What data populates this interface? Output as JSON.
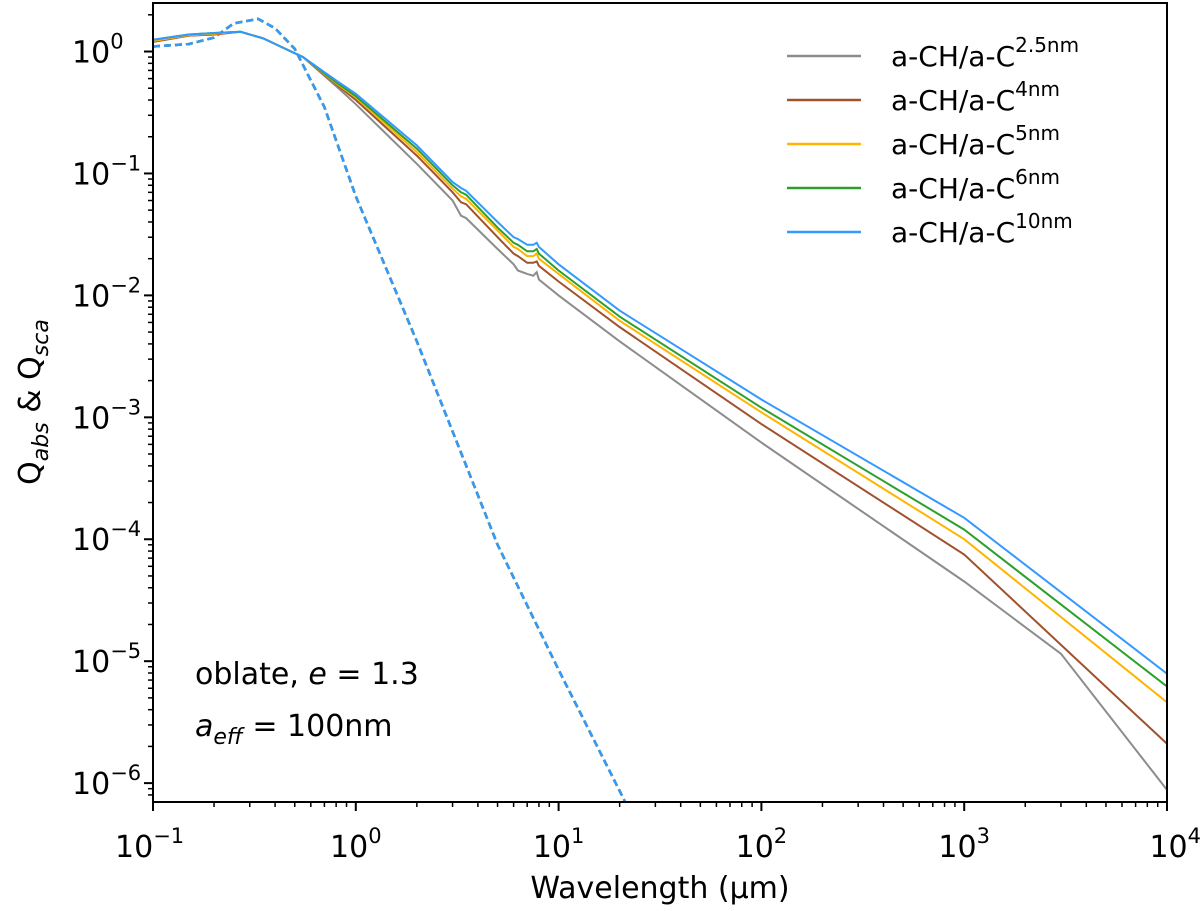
{
  "chart_data": {
    "type": "line",
    "xscale": "log",
    "yscale": "log",
    "xlabel": "Wavelength (μm)",
    "ylabel": "Q_abs & Q_sca",
    "ylabel_parts": {
      "q1": "Q",
      "sub1": "abs",
      "amp": " & ",
      "q2": "Q",
      "sub2": "sca"
    },
    "xlim": [
      0.1,
      10000
    ],
    "ylim": [
      7e-07,
      2.5
    ],
    "x_ticks": [
      {
        "value": 0.1,
        "base": "10",
        "exp": "−1"
      },
      {
        "value": 1,
        "base": "10",
        "exp": "0"
      },
      {
        "value": 10,
        "base": "10",
        "exp": "1"
      },
      {
        "value": 100,
        "base": "10",
        "exp": "2"
      },
      {
        "value": 1000,
        "base": "10",
        "exp": "3"
      },
      {
        "value": 10000,
        "base": "10",
        "exp": "4"
      }
    ],
    "y_ticks": [
      {
        "value": 1,
        "base": "10",
        "exp": "0"
      },
      {
        "value": 0.1,
        "base": "10",
        "exp": "−1"
      },
      {
        "value": 0.01,
        "base": "10",
        "exp": "−2"
      },
      {
        "value": 0.001,
        "base": "10",
        "exp": "−3"
      },
      {
        "value": 0.0001,
        "base": "10",
        "exp": "−4"
      },
      {
        "value": 1e-05,
        "base": "10",
        "exp": "−5"
      },
      {
        "value": 1e-06,
        "base": "10",
        "exp": "−6"
      }
    ],
    "annotation": {
      "line1_prefix": "oblate, ",
      "line1_var": "e",
      "line1_suffix": " = 1.3",
      "line2_var": "a",
      "line2_sub": "eff",
      "line2_suffix": " = 100nm"
    },
    "series": [
      {
        "name": "a-CH/a-C",
        "name_sup": "2.5nm",
        "color": "#8c8c8c",
        "absorption": [
          [
            0.1,
            1.2
          ],
          [
            0.15,
            1.35
          ],
          [
            0.2,
            1.38
          ],
          [
            0.27,
            1.45
          ],
          [
            0.35,
            1.28
          ],
          [
            0.45,
            1.05
          ],
          [
            0.55,
            0.9
          ],
          [
            0.8,
            0.52
          ],
          [
            1.0,
            0.37
          ],
          [
            2.0,
            0.12
          ],
          [
            3.0,
            0.06
          ],
          [
            3.3,
            0.045
          ],
          [
            3.5,
            0.043
          ],
          [
            5.0,
            0.024
          ],
          [
            6.0,
            0.018
          ],
          [
            6.3,
            0.016
          ],
          [
            7.0,
            0.015
          ],
          [
            7.5,
            0.0145
          ],
          [
            7.8,
            0.0155
          ],
          [
            8.0,
            0.0135
          ],
          [
            10,
            0.01
          ],
          [
            20,
            0.0042
          ],
          [
            100,
            0.00062
          ],
          [
            1000,
            4.5e-05
          ],
          [
            3000,
            1.15e-05
          ],
          [
            10000,
            8.8e-07
          ]
        ],
        "scattering": [
          [
            0.1,
            1.1
          ],
          [
            0.15,
            1.15
          ],
          [
            0.2,
            1.3
          ],
          [
            0.25,
            1.7
          ],
          [
            0.33,
            1.85
          ],
          [
            0.4,
            1.55
          ],
          [
            0.5,
            1.05
          ],
          [
            0.7,
            0.35
          ],
          [
            1.0,
            0.065
          ],
          [
            2,
            0.0042
          ],
          [
            5,
            9e-05
          ],
          [
            10,
            8.5e-06
          ],
          [
            21.3,
            7e-07
          ]
        ]
      },
      {
        "name": "a-CH/a-C",
        "name_sup": "4nm",
        "color": "#a0522d",
        "absorption": [
          [
            0.1,
            1.2
          ],
          [
            0.15,
            1.35
          ],
          [
            0.2,
            1.38
          ],
          [
            0.27,
            1.45
          ],
          [
            0.35,
            1.28
          ],
          [
            0.45,
            1.05
          ],
          [
            0.55,
            0.9
          ],
          [
            0.8,
            0.54
          ],
          [
            1.0,
            0.4
          ],
          [
            2.0,
            0.14
          ],
          [
            3.0,
            0.07
          ],
          [
            3.3,
            0.058
          ],
          [
            3.5,
            0.056
          ],
          [
            5.0,
            0.03
          ],
          [
            6.0,
            0.022
          ],
          [
            6.3,
            0.021
          ],
          [
            7.0,
            0.0185
          ],
          [
            7.5,
            0.0185
          ],
          [
            7.8,
            0.019
          ],
          [
            8.0,
            0.0175
          ],
          [
            10,
            0.013
          ],
          [
            20,
            0.0055
          ],
          [
            100,
            0.00088
          ],
          [
            1000,
            7.5e-05
          ],
          [
            10000,
            2.1e-06
          ]
        ],
        "scattering": [
          [
            0.1,
            1.1
          ],
          [
            0.15,
            1.15
          ],
          [
            0.2,
            1.3
          ],
          [
            0.25,
            1.7
          ],
          [
            0.33,
            1.85
          ],
          [
            0.4,
            1.55
          ],
          [
            0.5,
            1.05
          ],
          [
            0.7,
            0.35
          ],
          [
            1.0,
            0.065
          ],
          [
            2,
            0.0042
          ],
          [
            5,
            9e-05
          ],
          [
            10,
            8.5e-06
          ],
          [
            21.3,
            7e-07
          ]
        ]
      },
      {
        "name": "a-CH/a-C",
        "name_sup": "5nm",
        "color": "#ffb400",
        "absorption": [
          [
            0.1,
            1.22
          ],
          [
            0.15,
            1.36
          ],
          [
            0.2,
            1.4
          ],
          [
            0.27,
            1.45
          ],
          [
            0.35,
            1.28
          ],
          [
            0.45,
            1.05
          ],
          [
            0.55,
            0.9
          ],
          [
            0.8,
            0.55
          ],
          [
            1.0,
            0.42
          ],
          [
            2.0,
            0.15
          ],
          [
            3.0,
            0.075
          ],
          [
            3.3,
            0.065
          ],
          [
            3.5,
            0.062
          ],
          [
            5.0,
            0.034
          ],
          [
            6.0,
            0.025
          ],
          [
            6.3,
            0.024
          ],
          [
            7.0,
            0.021
          ],
          [
            7.5,
            0.021
          ],
          [
            7.8,
            0.022
          ],
          [
            8.0,
            0.02
          ],
          [
            10,
            0.015
          ],
          [
            20,
            0.0062
          ],
          [
            100,
            0.0011
          ],
          [
            1000,
            0.0001
          ],
          [
            10000,
            4.6e-06
          ]
        ],
        "scattering": [
          [
            0.1,
            1.1
          ],
          [
            0.15,
            1.15
          ],
          [
            0.2,
            1.3
          ],
          [
            0.25,
            1.7
          ],
          [
            0.33,
            1.85
          ],
          [
            0.4,
            1.55
          ],
          [
            0.5,
            1.05
          ],
          [
            0.7,
            0.35
          ],
          [
            1.0,
            0.065
          ],
          [
            2,
            0.0042
          ],
          [
            5,
            9e-05
          ],
          [
            10,
            8.5e-06
          ],
          [
            21.3,
            7e-07
          ]
        ]
      },
      {
        "name": "a-CH/a-C",
        "name_sup": "6nm",
        "color": "#2ca02c",
        "absorption": [
          [
            0.1,
            1.25
          ],
          [
            0.15,
            1.38
          ],
          [
            0.2,
            1.42
          ],
          [
            0.27,
            1.45
          ],
          [
            0.35,
            1.28
          ],
          [
            0.45,
            1.05
          ],
          [
            0.55,
            0.9
          ],
          [
            0.8,
            0.56
          ],
          [
            1.0,
            0.43
          ],
          [
            2.0,
            0.16
          ],
          [
            3.0,
            0.08
          ],
          [
            3.3,
            0.07
          ],
          [
            3.5,
            0.067
          ],
          [
            5.0,
            0.036
          ],
          [
            6.0,
            0.027
          ],
          [
            6.3,
            0.026
          ],
          [
            7.0,
            0.023
          ],
          [
            7.5,
            0.023
          ],
          [
            7.8,
            0.024
          ],
          [
            8.0,
            0.022
          ],
          [
            10,
            0.016
          ],
          [
            20,
            0.0067
          ],
          [
            100,
            0.0012
          ],
          [
            1000,
            0.00012
          ],
          [
            10000,
            6.2e-06
          ]
        ],
        "scattering": [
          [
            0.1,
            1.1
          ],
          [
            0.15,
            1.15
          ],
          [
            0.2,
            1.3
          ],
          [
            0.25,
            1.7
          ],
          [
            0.33,
            1.85
          ],
          [
            0.4,
            1.55
          ],
          [
            0.5,
            1.05
          ],
          [
            0.7,
            0.35
          ],
          [
            1.0,
            0.065
          ],
          [
            2,
            0.0042
          ],
          [
            5,
            9e-05
          ],
          [
            10,
            8.5e-06
          ],
          [
            21.3,
            7e-07
          ]
        ]
      },
      {
        "name": "a-CH/a-C",
        "name_sup": "10nm",
        "color": "#3399ff",
        "absorption": [
          [
            0.1,
            1.25
          ],
          [
            0.15,
            1.38
          ],
          [
            0.2,
            1.42
          ],
          [
            0.27,
            1.45
          ],
          [
            0.35,
            1.28
          ],
          [
            0.45,
            1.05
          ],
          [
            0.55,
            0.9
          ],
          [
            0.8,
            0.58
          ],
          [
            1.0,
            0.45
          ],
          [
            2.0,
            0.17
          ],
          [
            3.0,
            0.085
          ],
          [
            3.3,
            0.076
          ],
          [
            3.5,
            0.072
          ],
          [
            5.0,
            0.04
          ],
          [
            6.0,
            0.03
          ],
          [
            6.3,
            0.029
          ],
          [
            7.0,
            0.026
          ],
          [
            7.5,
            0.026
          ],
          [
            7.8,
            0.027
          ],
          [
            8.0,
            0.025
          ],
          [
            10,
            0.018
          ],
          [
            20,
            0.0075
          ],
          [
            100,
            0.0014
          ],
          [
            1000,
            0.00015
          ],
          [
            10000,
            7.9e-06
          ]
        ],
        "scattering": [
          [
            0.1,
            1.1
          ],
          [
            0.15,
            1.15
          ],
          [
            0.2,
            1.3
          ],
          [
            0.25,
            1.7
          ],
          [
            0.33,
            1.85
          ],
          [
            0.4,
            1.55
          ],
          [
            0.5,
            1.05
          ],
          [
            0.7,
            0.35
          ],
          [
            1.0,
            0.065
          ],
          [
            2,
            0.0042
          ],
          [
            5,
            9e-05
          ],
          [
            10,
            8.5e-06
          ],
          [
            21.3,
            7e-07
          ]
        ]
      }
    ]
  }
}
